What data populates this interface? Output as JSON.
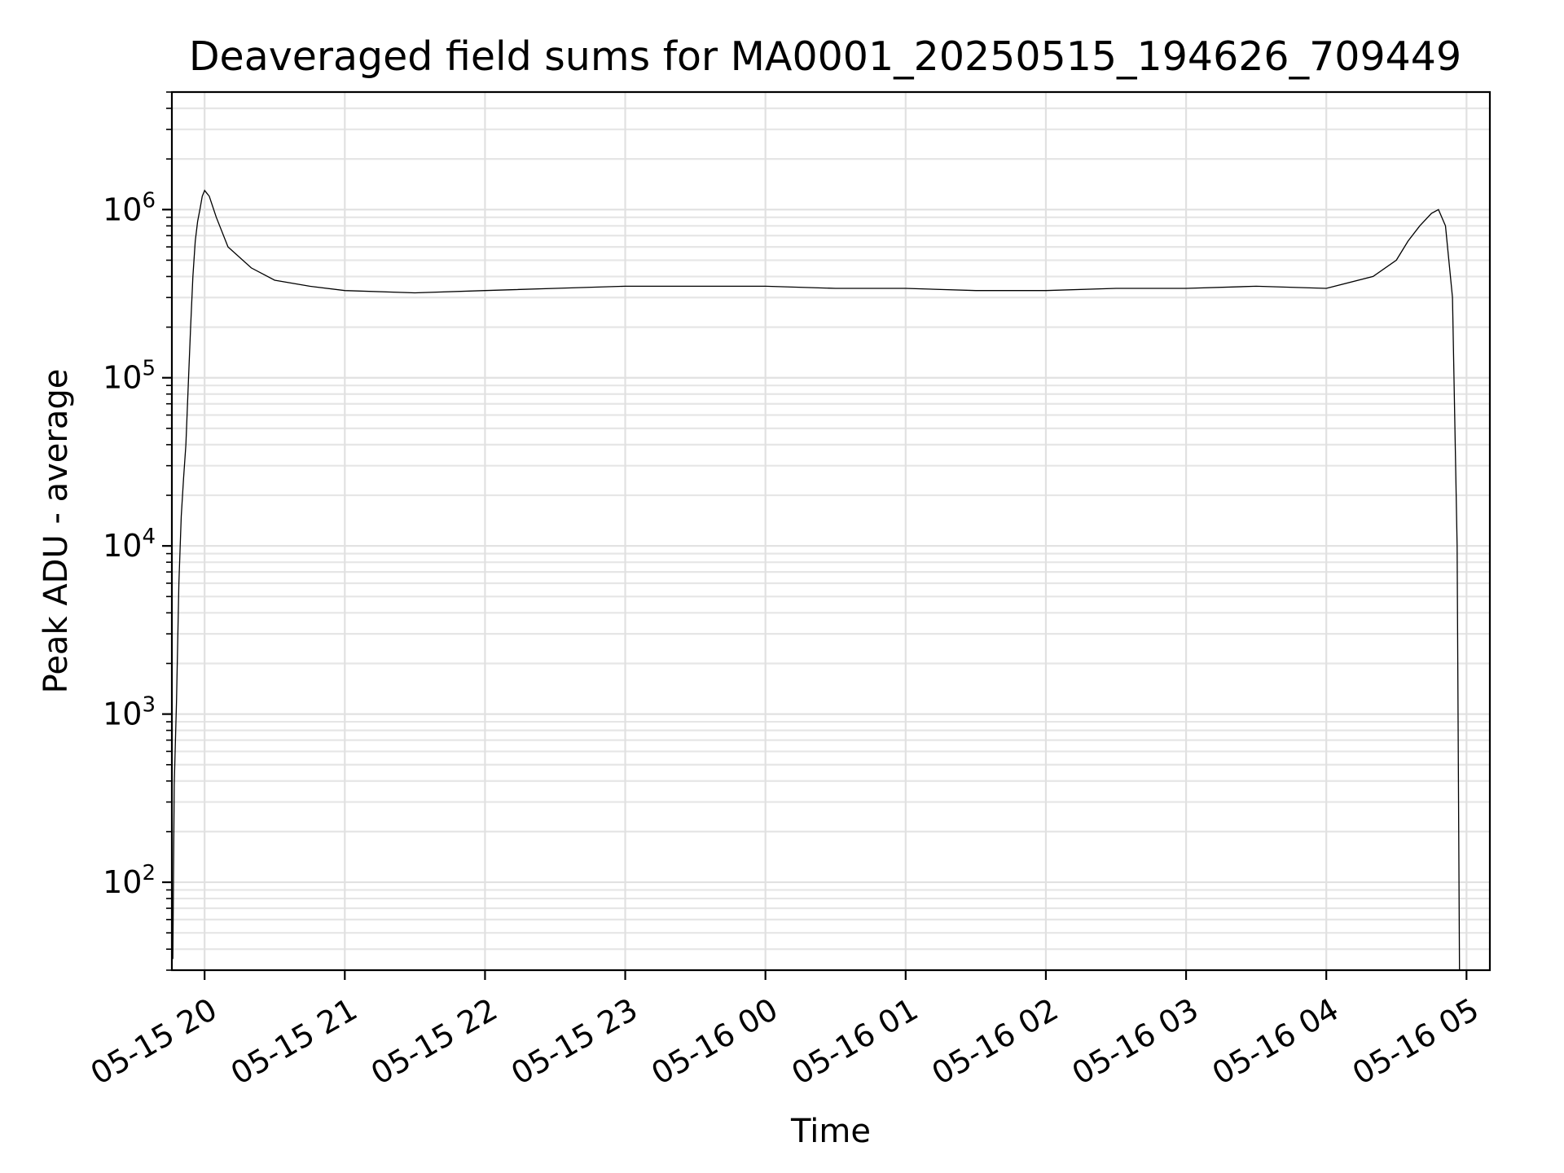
{
  "chart_data": {
    "type": "line",
    "title": "Deaveraged field sums for MA0001_20250515_194626_709449",
    "xlabel": "Time",
    "ylabel": "Peak ADU - average",
    "x_axis": {
      "kind": "datetime",
      "range": [
        "2025-05-15T19:46",
        "2025-05-16T05:10"
      ],
      "ticks": [
        {
          "value": "2025-05-15T20:00",
          "label": "05-15 20"
        },
        {
          "value": "2025-05-15T21:00",
          "label": "05-15 21"
        },
        {
          "value": "2025-05-15T22:00",
          "label": "05-15 22"
        },
        {
          "value": "2025-05-15T23:00",
          "label": "05-15 23"
        },
        {
          "value": "2025-05-16T00:00",
          "label": "05-16 00"
        },
        {
          "value": "2025-05-16T01:00",
          "label": "05-16 01"
        },
        {
          "value": "2025-05-16T02:00",
          "label": "05-16 02"
        },
        {
          "value": "2025-05-16T03:00",
          "label": "05-16 03"
        },
        {
          "value": "2025-05-16T04:00",
          "label": "05-16 04"
        },
        {
          "value": "2025-05-16T05:00",
          "label": "05-16 05"
        }
      ]
    },
    "y_axis": {
      "scale": "log",
      "range": [
        30,
        5000000
      ],
      "ticks": [
        {
          "value": 100,
          "base": "10",
          "exp": "2"
        },
        {
          "value": 1000,
          "base": "10",
          "exp": "3"
        },
        {
          "value": 10000,
          "base": "10",
          "exp": "4"
        },
        {
          "value": 100000,
          "base": "10",
          "exp": "5"
        },
        {
          "value": 1000000,
          "base": "10",
          "exp": "6"
        }
      ]
    },
    "grid": true,
    "line_color": "#000000",
    "series": [
      {
        "x": [
          "2025-05-15T19:46:26",
          "2025-05-15T19:47",
          "2025-05-15T19:48",
          "2025-05-15T19:49",
          "2025-05-15T19:50",
          "2025-05-15T19:51",
          "2025-05-15T19:52",
          "2025-05-15T19:53",
          "2025-05-15T19:54",
          "2025-05-15T19:55",
          "2025-05-15T19:56",
          "2025-05-15T19:57",
          "2025-05-15T19:58",
          "2025-05-15T19:59",
          "2025-05-15T20:00",
          "2025-05-15T20:02",
          "2025-05-15T20:05",
          "2025-05-15T20:10",
          "2025-05-15T20:20",
          "2025-05-15T20:30",
          "2025-05-15T20:45",
          "2025-05-15T21:00",
          "2025-05-15T21:30",
          "2025-05-15T22:00",
          "2025-05-15T22:30",
          "2025-05-15T23:00",
          "2025-05-15T23:30",
          "2025-05-16T00:00",
          "2025-05-16T00:30",
          "2025-05-16T01:00",
          "2025-05-16T01:30",
          "2025-05-16T02:00",
          "2025-05-16T02:30",
          "2025-05-16T03:00",
          "2025-05-16T03:30",
          "2025-05-16T04:00",
          "2025-05-16T04:20",
          "2025-05-16T04:30",
          "2025-05-16T04:35",
          "2025-05-16T04:40",
          "2025-05-16T04:45",
          "2025-05-16T04:48",
          "2025-05-16T04:51",
          "2025-05-16T04:54",
          "2025-05-16T04:56",
          "2025-05-16T04:57"
        ],
        "y": [
          35,
          380,
          1200,
          6000,
          15000,
          25000,
          40000,
          90000,
          200000,
          400000,
          650000,
          850000,
          1000000,
          1200000,
          1300000,
          1200000,
          900000,
          600000,
          450000,
          380000,
          350000,
          330000,
          320000,
          330000,
          340000,
          350000,
          350000,
          350000,
          340000,
          340000,
          330000,
          330000,
          340000,
          340000,
          350000,
          340000,
          400000,
          500000,
          650000,
          800000,
          950000,
          1000000,
          800000,
          300000,
          10000,
          30
        ]
      }
    ]
  }
}
